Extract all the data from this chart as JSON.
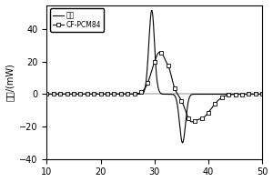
{
  "title": "",
  "xlabel": "",
  "ylabel": "热流/(mW)",
  "xlim": [
    10,
    50
  ],
  "ylim": [
    -40,
    55
  ],
  "xticks": [
    10,
    20,
    30,
    40,
    50
  ],
  "yticks": [
    -40,
    -20,
    0,
    20,
    40
  ],
  "legend_label1": "石蜡",
  "legend_label2": "CF-PCM84",
  "background_color": "#ffffff",
  "line1_color": "#000000",
  "line2_color": "#000000"
}
